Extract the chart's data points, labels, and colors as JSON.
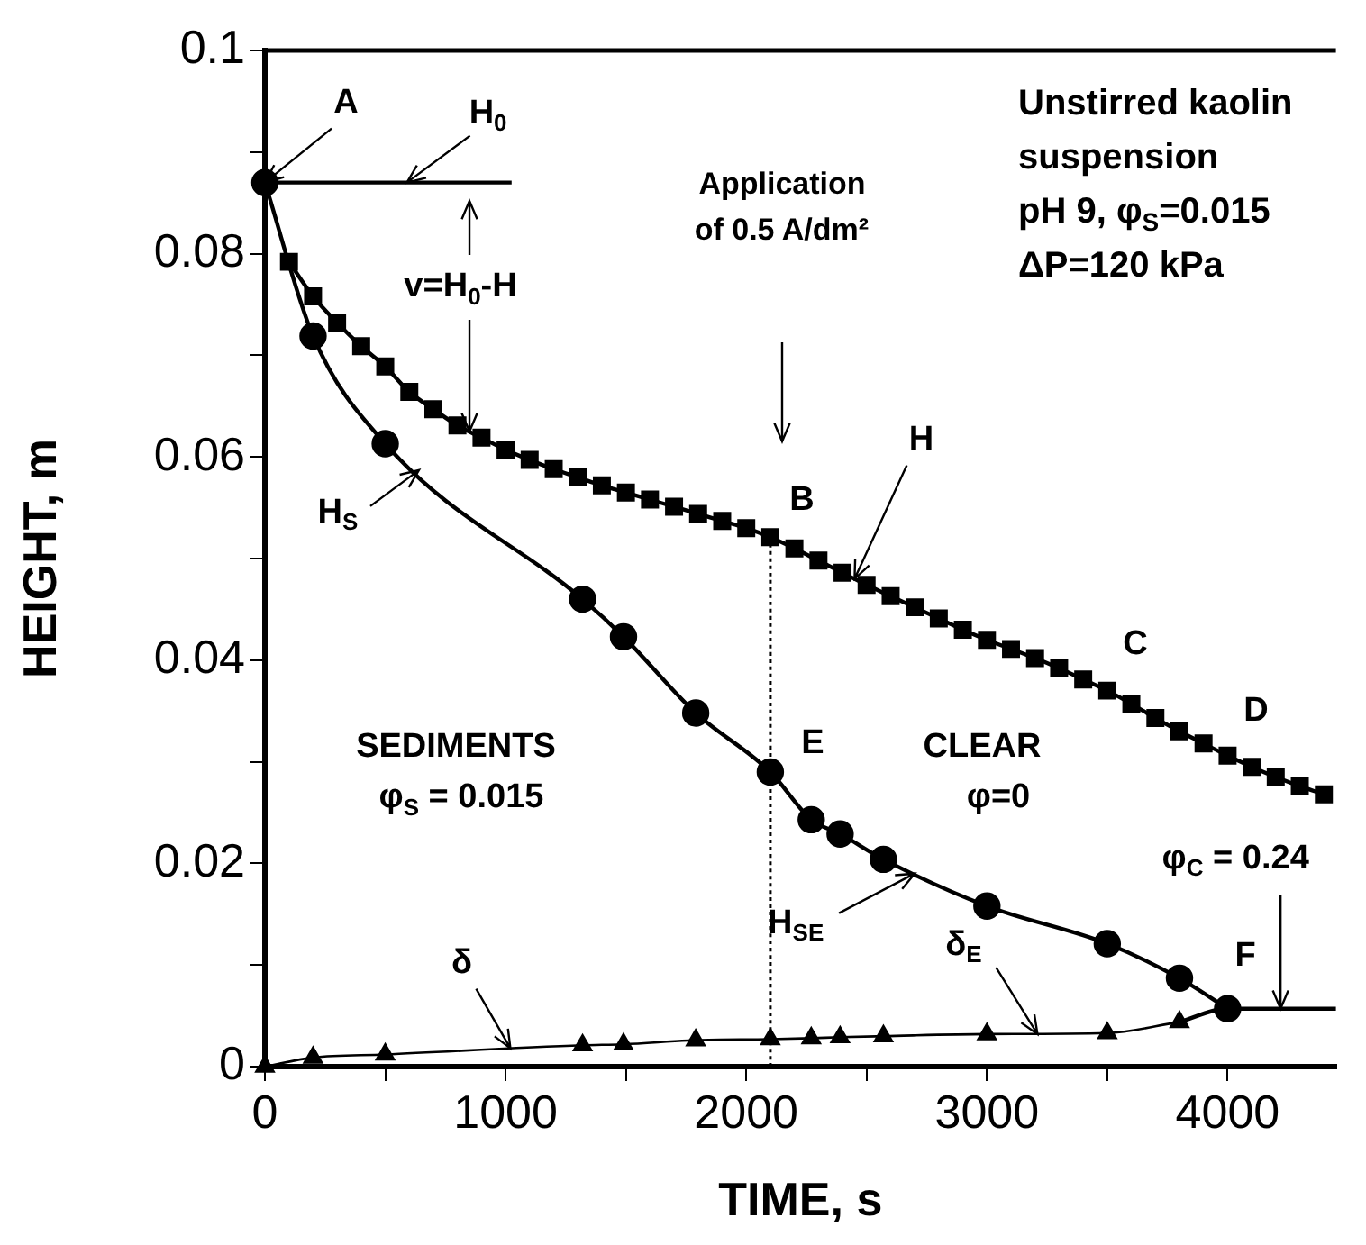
{
  "chart_data": {
    "type": "line",
    "xlabel": "TIME, s",
    "ylabel": "HEIGHT, m",
    "xlim": [
      0,
      4450
    ],
    "xticks": [
      0,
      {
        "value": 500,
        "label": null
      },
      1000,
      {
        "value": 1500,
        "label": null
      },
      2000,
      {
        "value": 2500,
        "label": null
      },
      3000,
      {
        "value": 3500,
        "label": null
      },
      4000
    ],
    "ylim": [
      0,
      0.1
    ],
    "yticks": [
      0,
      {
        "value": 0.01,
        "label": null
      },
      0.02,
      {
        "value": 0.03,
        "label": null
      },
      0.04,
      {
        "value": 0.05,
        "label": null
      },
      0.06,
      {
        "value": 0.07,
        "label": null
      },
      0.08,
      {
        "value": 0.09,
        "label": null
      },
      0.1
    ],
    "grid": false,
    "legend": false,
    "series": [
      {
        "color": "#000000",
        "marker": "square",
        "line_style": "solid",
        "x": [
          100,
          200,
          300,
          400,
          500,
          600,
          700,
          800,
          900,
          1000,
          1100,
          1200,
          1300,
          1400,
          1500,
          1600,
          1700,
          1800,
          1900,
          2000,
          2100,
          2200,
          2300,
          2400,
          2500,
          2600,
          2700,
          2800,
          2900,
          3000,
          3100,
          3200,
          3300,
          3400,
          3500,
          3600,
          3700,
          3800,
          3900,
          4000,
          4100,
          4200,
          4300,
          4400
        ],
        "values": [
          0.0792,
          0.0758,
          0.0732,
          0.0709,
          0.0689,
          0.0664,
          0.0647,
          0.0631,
          0.0619,
          0.0607,
          0.0597,
          0.0588,
          0.058,
          0.0572,
          0.0565,
          0.0558,
          0.0551,
          0.0544,
          0.0537,
          0.053,
          0.0521,
          0.051,
          0.0498,
          0.0486,
          0.0474,
          0.0463,
          0.0452,
          0.0441,
          0.043,
          0.042,
          0.0411,
          0.0402,
          0.0392,
          0.0381,
          0.037,
          0.0357,
          0.0343,
          0.033,
          0.0318,
          0.0306,
          0.0295,
          0.0285,
          0.0276,
          0.0268
        ]
      },
      {
        "color": "#000000",
        "marker": "circle",
        "line_style": "solid",
        "x": [
          0,
          200,
          500,
          1320,
          1490,
          1790,
          2100,
          2270,
          2390,
          2570,
          3000,
          3500,
          3800,
          4000
        ],
        "values": [
          0.087,
          0.0719,
          0.0613,
          0.046,
          0.0423,
          0.0348,
          0.029,
          0.0243,
          0.0229,
          0.0204,
          0.0158,
          0.0121,
          0.0087,
          0.0057
        ]
      },
      {
        "color": "#000000",
        "marker": "triangle",
        "line_style": "solid",
        "x": [
          0,
          200,
          500,
          1320,
          1490,
          1790,
          2100,
          2270,
          2390,
          2570,
          3000,
          3500,
          3800
        ],
        "values": [
          0,
          0.0009,
          0.0012,
          0.0021,
          0.0022,
          0.0026,
          0.0027,
          0.0028,
          0.0029,
          0.003,
          0.0032,
          0.0033,
          0.0044
        ]
      },
      {
        "color": "#000000",
        "marker": "none",
        "line_style": "solid",
        "x": [
          3800,
          4000,
          4450
        ],
        "values": [
          0.0044,
          0.0057,
          0.0057
        ]
      },
      {
        "color": "#000000",
        "marker": "none",
        "line_style": "solid",
        "x": [
          0,
          1025
        ],
        "values": [
          0.087,
          0.087
        ]
      },
      {
        "color": "#000000",
        "marker": "none",
        "line_style": "dotted",
        "x": [
          2100,
          2100
        ],
        "values": [
          0,
          0.0521
        ]
      }
    ],
    "annotations": [
      "Unstirred kaolin\nsuspension\npH 9, φ$_{S}$=0.015\nΔP=120 kPa",
      {
        "text": "A",
        "x": 0,
        "y": 0.087
      },
      {
        "text": "H$_{0}$",
        "x": 590,
        "y": 0.087
      },
      {
        "text": "v=H$_{0}$-H",
        "x": 850,
        "y": 0.0625
      },
      "Application\nof 0.5 A/dm²",
      "B",
      {
        "text": "H",
        "x": 2450,
        "y": 0.048
      },
      "C",
      "D",
      "E",
      "F",
      {
        "text": "H$_{S}$",
        "x": 640,
        "y": 0.0587
      },
      {
        "text": "H$_{SE}$",
        "x": 2700,
        "y": 0.019
      },
      {
        "text": "δ",
        "x": 1020,
        "y": 0.0018
      },
      {
        "text": "δ$_{E}$",
        "x": 3210,
        "y": 0.0032
      },
      {
        "text": "φ$_{C}$ = 0.24",
        "x": 4220,
        "y": 0.0057
      },
      "SEDIMENTS",
      "φ$_{S}$ = 0.015",
      "CLEAR",
      "φ=0"
    ]
  }
}
